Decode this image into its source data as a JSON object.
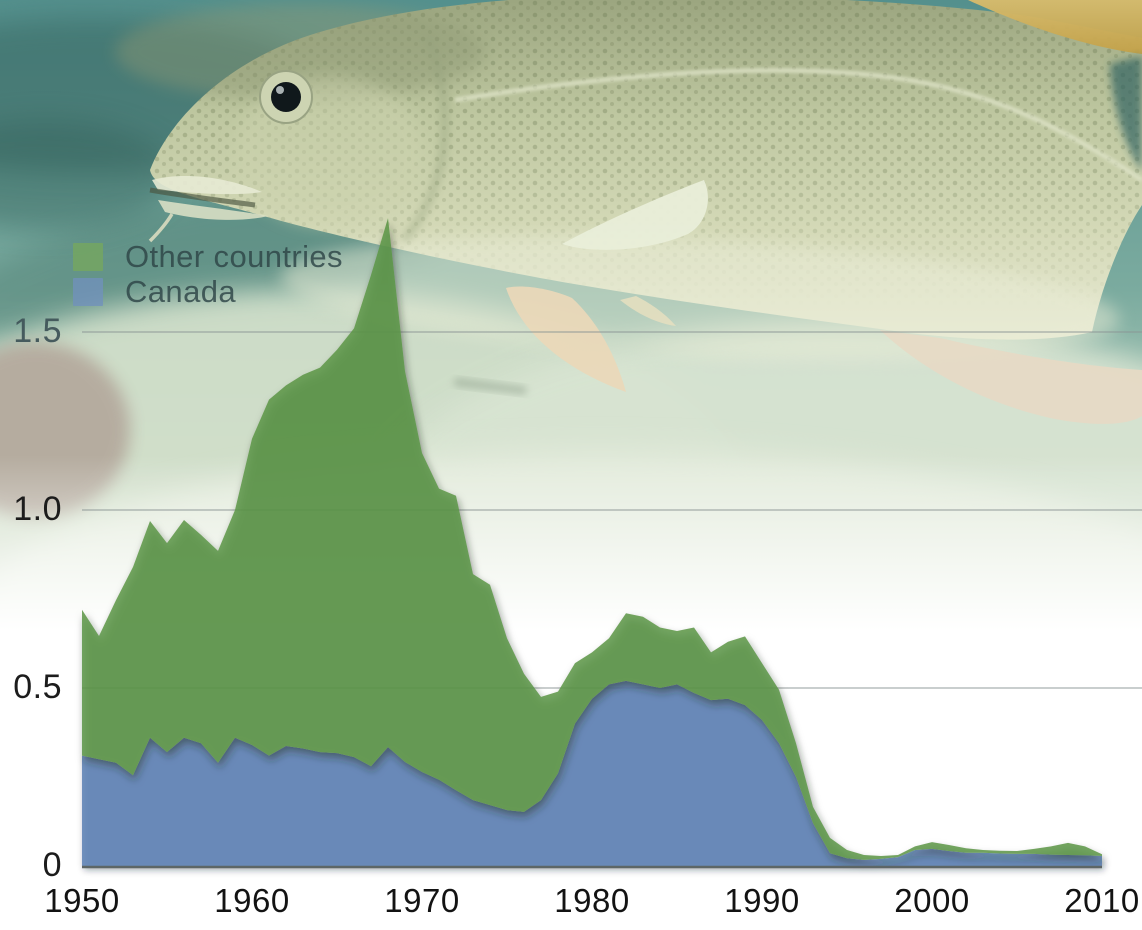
{
  "legend": {
    "items": [
      {
        "label": "Other countries",
        "color": "#76a85e"
      },
      {
        "label": "Canada",
        "color": "#7191bd"
      }
    ]
  },
  "y_axis": {
    "ticks": [
      "1.5",
      "1.0",
      "0.5",
      "0"
    ]
  },
  "x_axis": {
    "ticks": [
      "1950",
      "1960",
      "1970",
      "1980",
      "1990",
      "2000",
      "2010"
    ]
  },
  "background_image": "underwater photograph of an Atlantic cod fish over sandy seabed",
  "chart_data": {
    "type": "area",
    "stacked": true,
    "title": "",
    "xlabel": "",
    "ylabel": "",
    "xlim": [
      1950,
      2010
    ],
    "ylim": [
      0,
      1.9
    ],
    "gridlines": [
      0.5,
      1.0,
      1.5
    ],
    "grid": true,
    "legend_position": "top-left",
    "x": [
      1950,
      1951,
      1952,
      1953,
      1954,
      1955,
      1956,
      1957,
      1958,
      1959,
      1960,
      1961,
      1962,
      1963,
      1964,
      1965,
      1966,
      1967,
      1968,
      1969,
      1970,
      1971,
      1972,
      1973,
      1974,
      1975,
      1976,
      1977,
      1978,
      1979,
      1980,
      1981,
      1982,
      1983,
      1984,
      1985,
      1986,
      1987,
      1988,
      1989,
      1990,
      1991,
      1992,
      1993,
      1994,
      1995,
      1996,
      1997,
      1998,
      1999,
      2000,
      2001,
      2002,
      2003,
      2004,
      2005,
      2006,
      2007,
      2008,
      2009,
      2010
    ],
    "series": [
      {
        "name": "Canada",
        "color": "#7191bd",
        "values": [
          0.31,
          0.3,
          0.29,
          0.255,
          0.36,
          0.32,
          0.36,
          0.345,
          0.29,
          0.36,
          0.34,
          0.31,
          0.337,
          0.33,
          0.32,
          0.317,
          0.306,
          0.28,
          0.334,
          0.292,
          0.264,
          0.242,
          0.213,
          0.185,
          0.171,
          0.157,
          0.152,
          0.185,
          0.26,
          0.4,
          0.47,
          0.51,
          0.52,
          0.51,
          0.5,
          0.51,
          0.486,
          0.466,
          0.47,
          0.452,
          0.41,
          0.345,
          0.25,
          0.12,
          0.036,
          0.022,
          0.017,
          0.02,
          0.025,
          0.045,
          0.048,
          0.042,
          0.037,
          0.037,
          0.035,
          0.034,
          0.034,
          0.032,
          0.031,
          0.03,
          0.028
        ]
      },
      {
        "name": "Other countries",
        "color": "#76a85e",
        "values": [
          0.41,
          0.346,
          0.457,
          0.585,
          0.609,
          0.587,
          0.612,
          0.585,
          0.595,
          0.64,
          0.86,
          1.0,
          1.013,
          1.05,
          1.08,
          1.133,
          1.204,
          1.38,
          1.486,
          1.098,
          0.896,
          0.818,
          0.827,
          0.635,
          0.619,
          0.483,
          0.388,
          0.29,
          0.23,
          0.17,
          0.13,
          0.13,
          0.19,
          0.19,
          0.17,
          0.15,
          0.184,
          0.134,
          0.16,
          0.193,
          0.16,
          0.15,
          0.095,
          0.046,
          0.043,
          0.023,
          0.014,
          0.008,
          0.006,
          0.01,
          0.019,
          0.017,
          0.013,
          0.008,
          0.008,
          0.008,
          0.014,
          0.023,
          0.034,
          0.025,
          0.005
        ]
      }
    ]
  }
}
